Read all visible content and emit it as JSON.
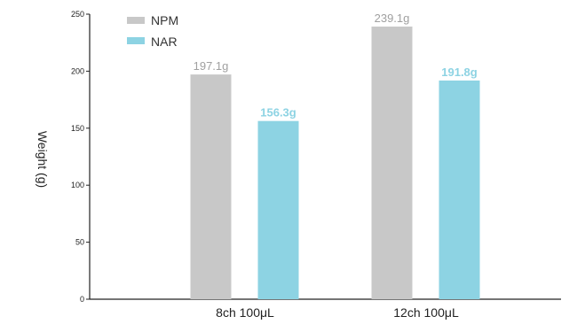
{
  "chart_data": {
    "type": "bar",
    "categories": [
      "8ch 100μL",
      "12ch 100μL"
    ],
    "series": [
      {
        "name": "NPM",
        "values": [
          197.1,
          239.1
        ],
        "value_labels": [
          "197.1g",
          "239.1g"
        ],
        "color": "#c8c8c8",
        "label_color": "#a0a0a0"
      },
      {
        "name": "NAR",
        "values": [
          156.3,
          191.8
        ],
        "value_labels": [
          "156.3g",
          "191.8g"
        ],
        "color": "#8dd3e3",
        "label_color": "#8dd3e3"
      }
    ],
    "ylabel": "Weight (g)",
    "xlabel": "",
    "ylim": [
      0,
      250
    ],
    "yticks": [
      "0",
      "50",
      "100",
      "150",
      "200",
      "250"
    ],
    "grid": false,
    "legend_position": "top-left"
  }
}
